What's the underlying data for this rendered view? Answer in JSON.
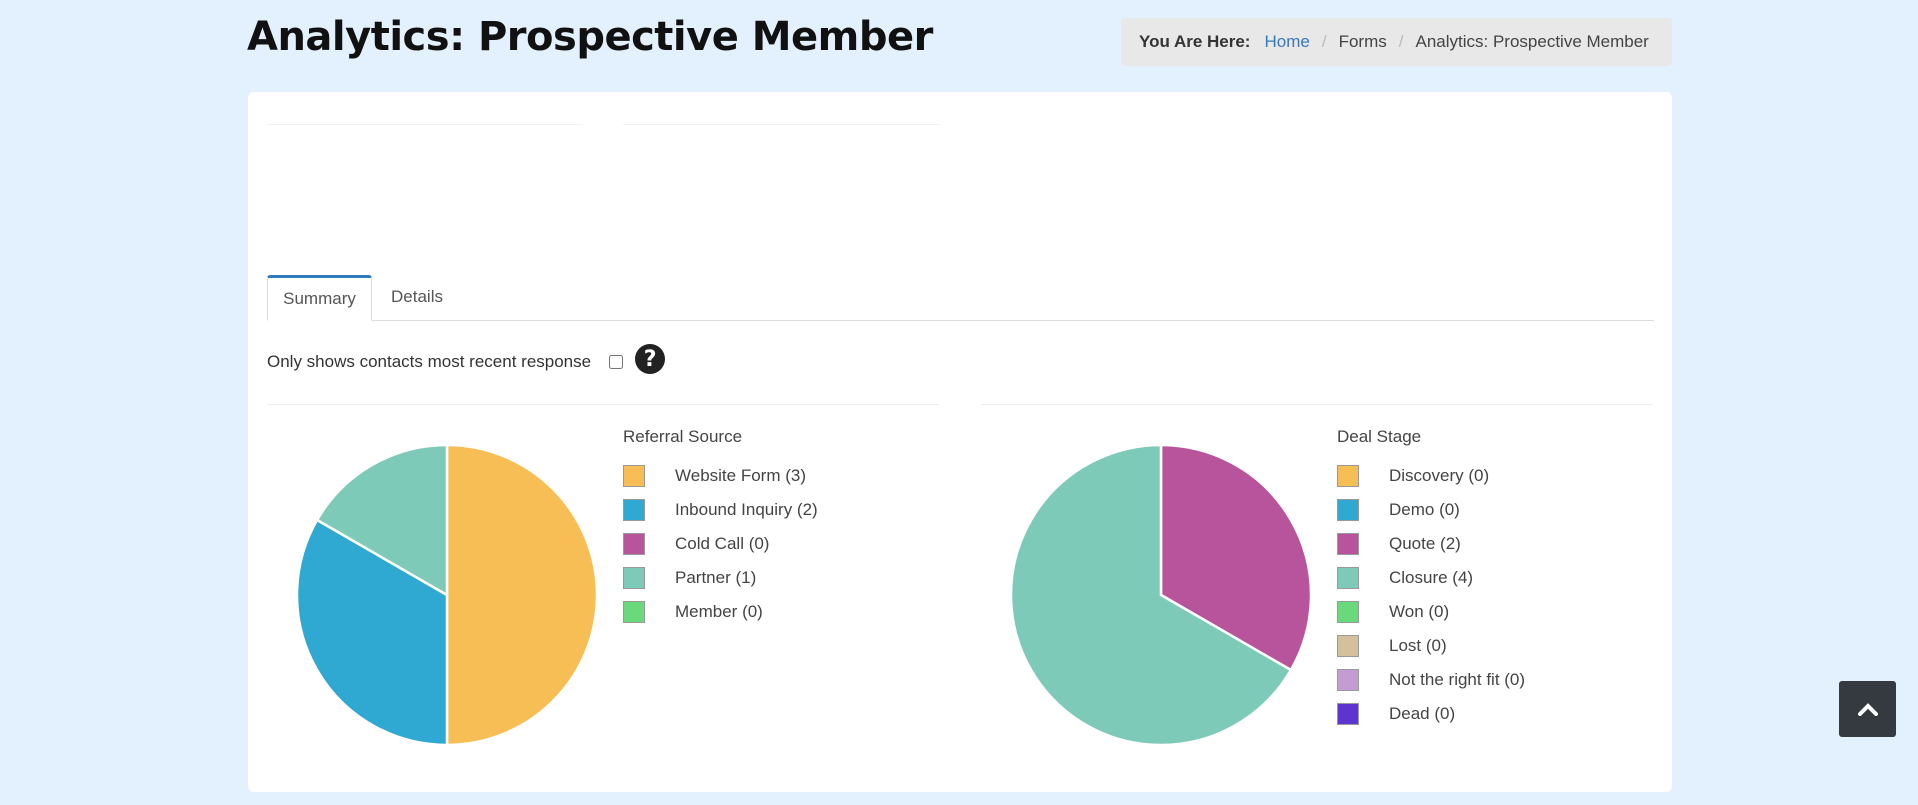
{
  "page": {
    "title": "Analytics: Prospective Member"
  },
  "breadcrumb": {
    "label": "You Are Here:",
    "items": [
      "Home",
      "Forms",
      "Analytics: Prospective Member"
    ]
  },
  "tabs": [
    {
      "label": "Summary",
      "active": true
    },
    {
      "label": "Details",
      "active": false
    }
  ],
  "filter": {
    "label": "Only shows contacts most recent response",
    "checked": false,
    "help_icon": "question-circle-icon"
  },
  "scroll_top_icon": "chevron-up-icon",
  "chart_data": [
    {
      "type": "pie",
      "title": "Referral Source",
      "categories": [
        "Website Form",
        "Inbound Inquiry",
        "Cold Call",
        "Partner",
        "Member"
      ],
      "values": [
        3,
        2,
        0,
        1,
        0
      ],
      "legend": [
        "Website Form (3)",
        "Inbound Inquiry (2)",
        "Cold Call (0)",
        "Partner (1)",
        "Member (0)"
      ],
      "colors": [
        "#f7be55",
        "#2fa8d2",
        "#b7549b",
        "#7ecab9",
        "#6ad97b"
      ],
      "legend_position": "right"
    },
    {
      "type": "pie",
      "title": "Deal Stage",
      "categories": [
        "Discovery",
        "Demo",
        "Quote",
        "Closure",
        "Won",
        "Lost",
        "Not the right fit",
        "Dead"
      ],
      "values": [
        0,
        0,
        2,
        4,
        0,
        0,
        0,
        0
      ],
      "legend": [
        "Discovery (0)",
        "Demo (0)",
        "Quote (2)",
        "Closure (4)",
        "Won (0)",
        "Lost (0)",
        "Not the right fit (0)",
        "Dead (0)"
      ],
      "colors": [
        "#f7be55",
        "#2fa8d2",
        "#b7549b",
        "#7ecab9",
        "#6ad97b",
        "#d4c09b",
        "#c39cd3",
        "#5d34d0"
      ],
      "legend_position": "right"
    }
  ]
}
